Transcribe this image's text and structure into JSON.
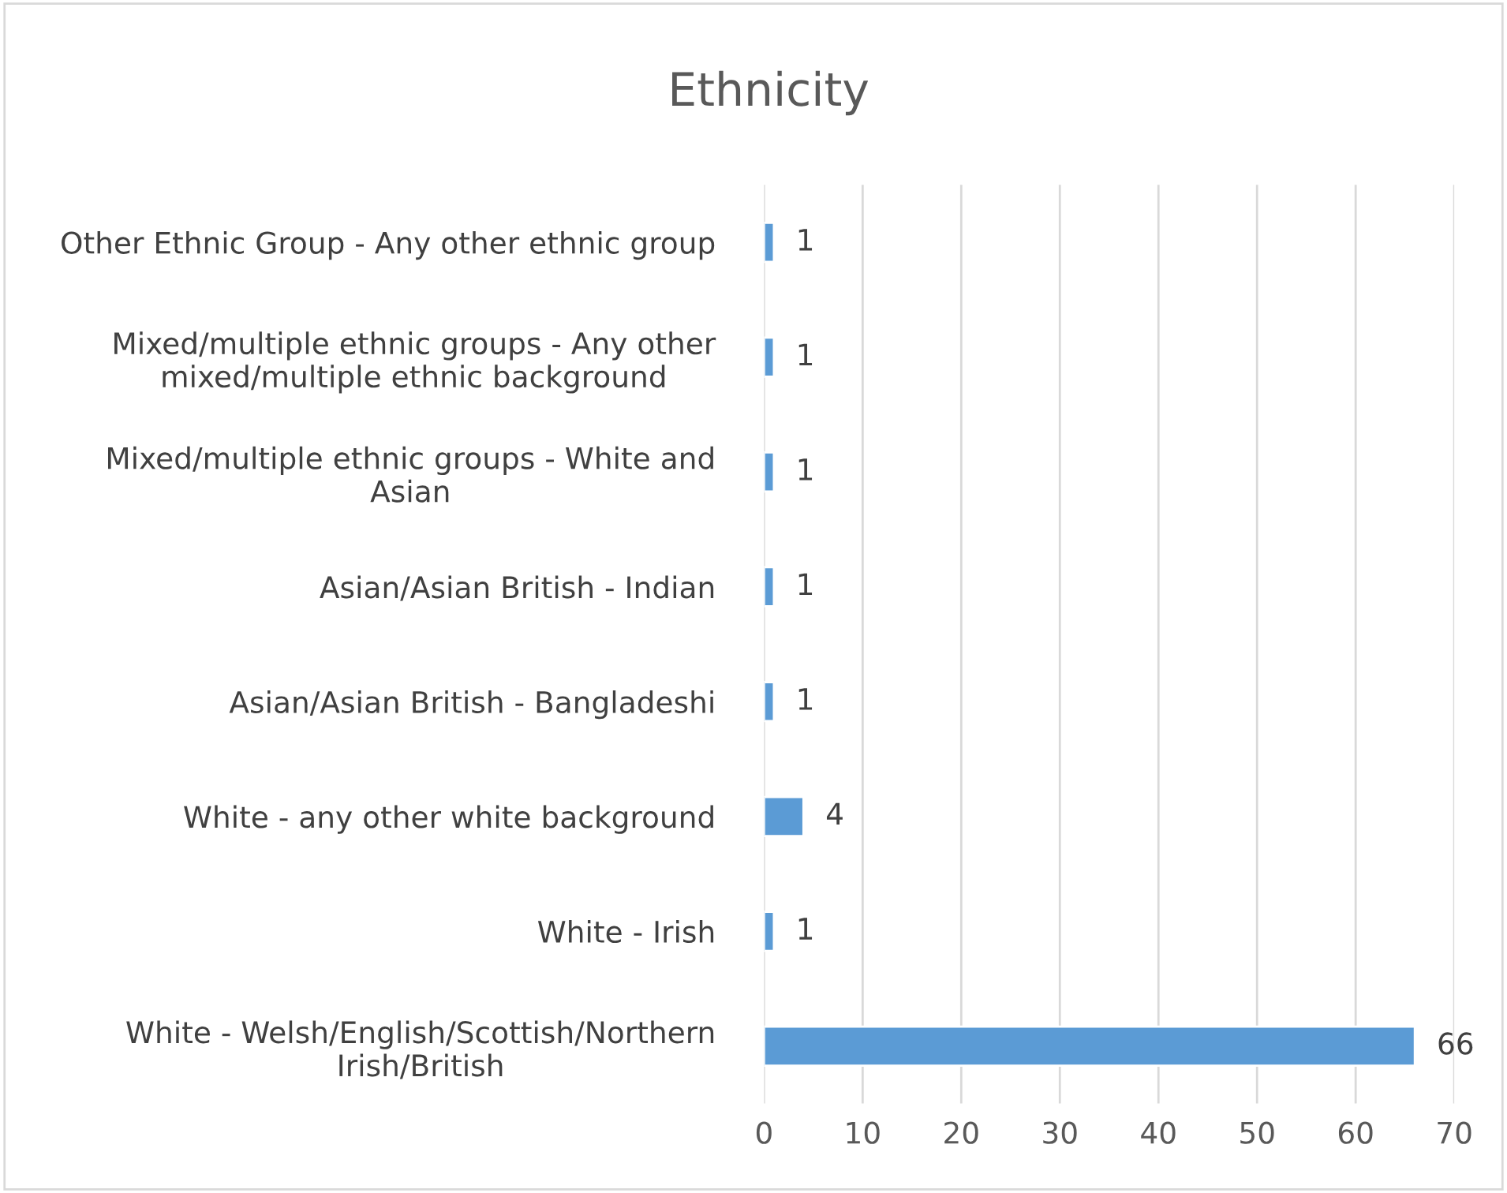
{
  "chart_data": {
    "type": "bar",
    "orientation": "horizontal",
    "title": "Ethnicity",
    "categories": [
      "Other Ethnic Group - Any other ethnic group",
      "Mixed/multiple ethnic groups - Any other\nmixed/multiple ethnic background",
      "Mixed/multiple ethnic groups - White and\nAsian",
      "Asian/Asian British - Indian",
      "Asian/Asian British - Bangladeshi",
      "White - any other white background",
      "White - Irish",
      "White - Welsh/English/Scottish/Northern\nIrish/British"
    ],
    "values": [
      1,
      1,
      1,
      1,
      1,
      4,
      1,
      66
    ],
    "color": "#5b9bd5",
    "xlim": [
      0,
      70
    ],
    "xticks": [
      0,
      10,
      20,
      30,
      40,
      50,
      60,
      70
    ],
    "grid": "x",
    "data_labels": true,
    "legend": false
  }
}
